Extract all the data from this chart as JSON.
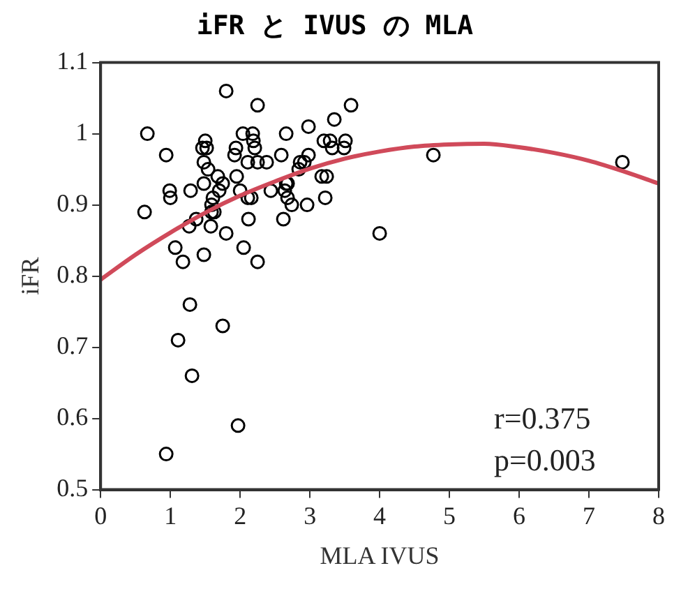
{
  "chart_data": {
    "type": "scatter",
    "title": "iFR と IVUS の MLA",
    "xlabel": "MLA IVUS",
    "ylabel": "iFR",
    "xlim": [
      0,
      8
    ],
    "xticks": [
      0,
      1,
      2,
      3,
      4,
      5,
      6,
      7,
      8
    ],
    "ylim": [
      0.5,
      1.1
    ],
    "yticks": [
      0.5,
      0.6,
      0.7,
      0.8,
      0.9,
      1,
      1.1
    ],
    "grid": false,
    "legend": false,
    "marker": "circle",
    "annotations": [
      "r=0.375",
      "p=0.003"
    ],
    "series": [
      {
        "type": "scatter",
        "color": "#000000",
        "x": [
          0.67,
          1.8,
          2.25,
          3.59,
          0.94,
          1.5,
          1.52,
          1.46,
          1.48,
          1.54,
          1.94,
          1.92,
          2.04,
          2.18,
          2.19,
          2.21,
          2.66,
          2.98,
          3.35,
          3.2,
          3.29,
          3.32,
          3.51,
          3.49,
          2.59,
          2.98,
          2.11,
          2.25,
          2.38,
          2.86,
          2.92,
          2.84,
          1.95,
          1.68,
          1.75,
          1.7,
          1.61,
          1.59,
          1.48,
          3.17,
          3.24,
          0.99,
          1.0,
          1.29,
          2.0,
          2.16,
          2.11,
          2.44,
          2.66,
          2.68,
          2.64,
          2.68,
          2.74,
          2.96,
          3.22,
          0.63,
          1.59,
          1.63,
          1.37,
          2.12,
          2.62,
          1.27,
          1.58,
          1.8,
          1.07,
          2.05,
          1.18,
          1.48,
          2.25,
          4.0,
          1.28,
          1.75,
          1.11,
          1.31,
          1.97,
          0.94,
          4.77,
          7.48
        ],
        "values": [
          1.0,
          1.06,
          1.04,
          1.04,
          0.97,
          0.99,
          0.98,
          0.98,
          0.96,
          0.95,
          0.98,
          0.97,
          1.0,
          1.0,
          0.99,
          0.98,
          1.0,
          1.01,
          1.02,
          0.99,
          0.99,
          0.98,
          0.99,
          0.98,
          0.97,
          0.97,
          0.96,
          0.96,
          0.96,
          0.96,
          0.96,
          0.95,
          0.94,
          0.94,
          0.93,
          0.92,
          0.91,
          0.9,
          0.93,
          0.94,
          0.94,
          0.92,
          0.91,
          0.92,
          0.92,
          0.91,
          0.91,
          0.92,
          0.93,
          0.93,
          0.92,
          0.91,
          0.9,
          0.9,
          0.91,
          0.89,
          0.89,
          0.89,
          0.88,
          0.88,
          0.88,
          0.87,
          0.87,
          0.86,
          0.84,
          0.84,
          0.82,
          0.83,
          0.82,
          0.86,
          0.76,
          0.73,
          0.71,
          0.66,
          0.59,
          0.55,
          0.97,
          0.96
        ]
      },
      {
        "type": "line",
        "color": "#d04a5a",
        "marker": "none",
        "x": [
          0,
          0.5,
          1,
          1.5,
          2,
          2.5,
          3,
          3.5,
          4,
          4.5,
          5,
          5.5,
          6,
          6.5,
          7,
          7.5,
          8
        ],
        "values": [
          0.795,
          0.83,
          0.861,
          0.889,
          0.913,
          0.933,
          0.951,
          0.965,
          0.975,
          0.982,
          0.985,
          0.986,
          0.981,
          0.973,
          0.962,
          0.947,
          0.93
        ]
      }
    ]
  }
}
